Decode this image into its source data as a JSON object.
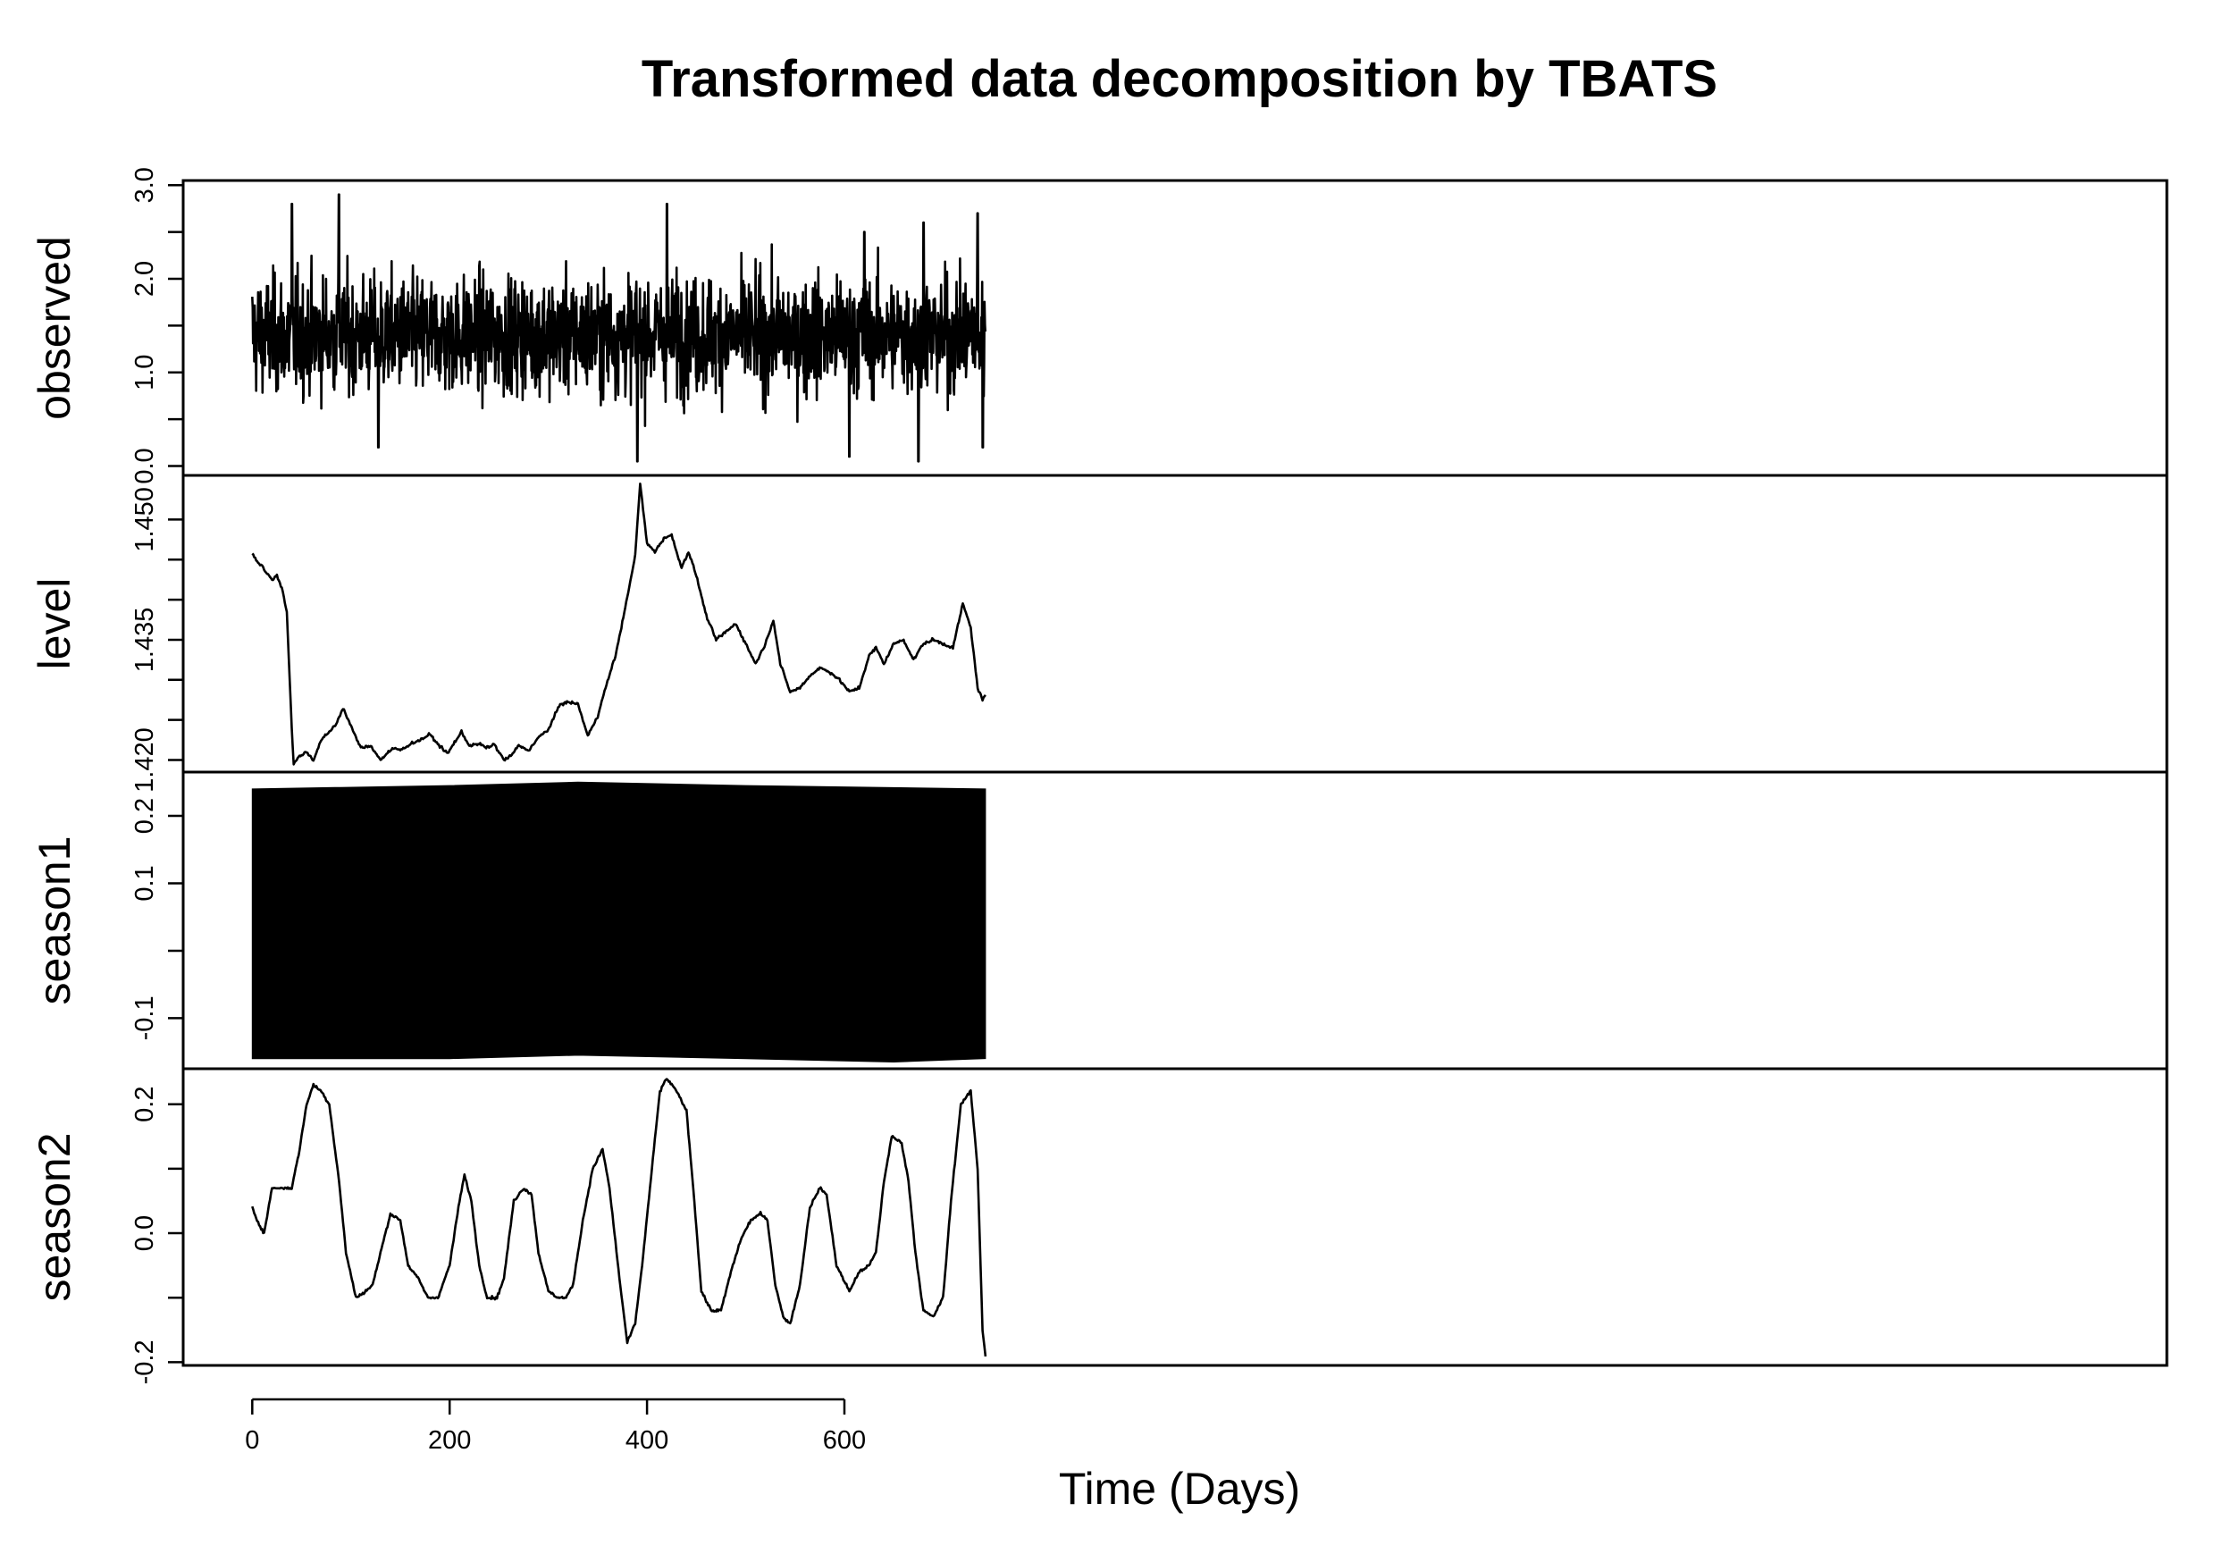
{
  "chart_data": {
    "type": "line",
    "title": "Transformed data decomposition by TBATS",
    "xlabel": "Time (Days)",
    "xlim": [
      -70,
      1940
    ],
    "xticks": [
      0,
      200,
      400,
      600
    ],
    "x_range": [
      0,
      743
    ],
    "series_color": "#000000",
    "panels": [
      {
        "name": "observed",
        "ylabel": "observed",
        "ylim": [
          -0.1,
          3.05
        ],
        "yticks": [
          0.0,
          0.5,
          1.0,
          1.5,
          2.0,
          2.5,
          3.0
        ],
        "ytick_labels": [
          "0.0",
          "",
          "1.0",
          "",
          "2.0",
          "",
          "3.0"
        ],
        "kind": "noise",
        "summary": {
          "mean": 1.4,
          "min": 0.0,
          "max": 2.9,
          "typical_low": 0.4,
          "typical_high": 2.3
        },
        "peaks": [
          [
            40,
            2.8
          ],
          [
            88,
            2.9
          ],
          [
            420,
            2.8
          ],
          [
            620,
            2.5
          ],
          [
            680,
            2.6
          ],
          [
            735,
            2.7
          ]
        ],
        "troughs": [
          [
            128,
            0.2
          ],
          [
            390,
            0.05
          ],
          [
            605,
            0.1
          ],
          [
            675,
            0.05
          ],
          [
            740,
            0.2
          ]
        ]
      },
      {
        "name": "level",
        "ylabel": "level",
        "ylim": [
          1.4185,
          1.4555
        ],
        "yticks": [
          1.42,
          1.425,
          1.43,
          1.435,
          1.44,
          1.445,
          1.45
        ],
        "ytick_labels": [
          "1.420",
          "",
          "",
          "1.435",
          "",
          "",
          "1.450"
        ],
        "kind": "line",
        "points": [
          [
            0,
            1.4458
          ],
          [
            5,
            1.4448
          ],
          [
            10,
            1.4442
          ],
          [
            15,
            1.4432
          ],
          [
            20,
            1.4425
          ],
          [
            25,
            1.443
          ],
          [
            30,
            1.4415
          ],
          [
            35,
            1.4385
          ],
          [
            40,
            1.424
          ],
          [
            42,
            1.4195
          ],
          [
            48,
            1.4205
          ],
          [
            55,
            1.421
          ],
          [
            62,
            1.42
          ],
          [
            70,
            1.4225
          ],
          [
            78,
            1.4235
          ],
          [
            85,
            1.4245
          ],
          [
            92,
            1.4265
          ],
          [
            100,
            1.4242
          ],
          [
            110,
            1.4215
          ],
          [
            120,
            1.4218
          ],
          [
            130,
            1.42
          ],
          [
            138,
            1.421
          ],
          [
            145,
            1.4215
          ],
          [
            150,
            1.4212
          ],
          [
            160,
            1.422
          ],
          [
            170,
            1.4225
          ],
          [
            180,
            1.4232
          ],
          [
            188,
            1.422
          ],
          [
            198,
            1.4208
          ],
          [
            205,
            1.4222
          ],
          [
            212,
            1.4235
          ],
          [
            220,
            1.4218
          ],
          [
            230,
            1.422
          ],
          [
            238,
            1.4215
          ],
          [
            245,
            1.422
          ],
          [
            255,
            1.42
          ],
          [
            262,
            1.4205
          ],
          [
            270,
            1.4218
          ],
          [
            280,
            1.4212
          ],
          [
            290,
            1.4228
          ],
          [
            300,
            1.4238
          ],
          [
            312,
            1.427
          ],
          [
            320,
            1.4272
          ],
          [
            330,
            1.427
          ],
          [
            340,
            1.423
          ],
          [
            350,
            1.4255
          ],
          [
            358,
            1.429
          ],
          [
            368,
            1.433
          ],
          [
            378,
            1.439
          ],
          [
            388,
            1.4455
          ],
          [
            393,
            1.4545
          ],
          [
            400,
            1.447
          ],
          [
            408,
            1.446
          ],
          [
            418,
            1.4478
          ],
          [
            425,
            1.448
          ],
          [
            435,
            1.444
          ],
          [
            442,
            1.446
          ],
          [
            450,
            1.443
          ],
          [
            460,
            1.438
          ],
          [
            470,
            1.435
          ],
          [
            480,
            1.436
          ],
          [
            490,
            1.437
          ],
          [
            500,
            1.4345
          ],
          [
            510,
            1.432
          ],
          [
            520,
            1.4345
          ],
          [
            528,
            1.4375
          ],
          [
            535,
            1.432
          ],
          [
            545,
            1.4285
          ],
          [
            555,
            1.429
          ],
          [
            565,
            1.4305
          ],
          [
            575,
            1.4315
          ],
          [
            585,
            1.431
          ],
          [
            595,
            1.43
          ],
          [
            605,
            1.4285
          ],
          [
            615,
            1.429
          ],
          [
            625,
            1.433
          ],
          [
            632,
            1.434
          ],
          [
            640,
            1.432
          ],
          [
            650,
            1.4345
          ],
          [
            660,
            1.435
          ],
          [
            670,
            1.4325
          ],
          [
            680,
            1.4345
          ],
          [
            690,
            1.435
          ],
          [
            700,
            1.4345
          ],
          [
            710,
            1.434
          ],
          [
            720,
            1.4395
          ],
          [
            728,
            1.4365
          ],
          [
            735,
            1.429
          ],
          [
            740,
            1.4275
          ],
          [
            743,
            1.428
          ]
        ]
      },
      {
        "name": "season1",
        "ylabel": "season1",
        "ylim": [
          -0.175,
          0.265
        ],
        "yticks": [
          -0.1,
          0.0,
          0.1,
          0.2
        ],
        "ytick_labels": [
          "-0.1",
          "",
          "0.1",
          "0.2"
        ],
        "kind": "band",
        "upper_points": [
          [
            0,
            0.24
          ],
          [
            200,
            0.245
          ],
          [
            330,
            0.25
          ],
          [
            500,
            0.245
          ],
          [
            743,
            0.24
          ]
        ],
        "lower_points": [
          [
            0,
            -0.16
          ],
          [
            200,
            -0.16
          ],
          [
            330,
            -0.155
          ],
          [
            500,
            -0.16
          ],
          [
            650,
            -0.165
          ],
          [
            743,
            -0.16
          ]
        ]
      },
      {
        "name": "season2",
        "ylabel": "season2",
        "ylim": [
          -0.205,
          0.255
        ],
        "yticks": [
          -0.2,
          -0.1,
          0.0,
          0.1,
          0.2
        ],
        "ytick_labels": [
          "-0.2",
          "",
          "0.0",
          "",
          "0.2"
        ],
        "kind": "line",
        "points": [
          [
            0,
            0.04
          ],
          [
            5,
            0.02
          ],
          [
            12,
            0.0
          ],
          [
            20,
            0.07
          ],
          [
            30,
            0.07
          ],
          [
            40,
            0.07
          ],
          [
            48,
            0.13
          ],
          [
            55,
            0.2
          ],
          [
            62,
            0.23
          ],
          [
            70,
            0.22
          ],
          [
            78,
            0.2
          ],
          [
            88,
            0.08
          ],
          [
            95,
            -0.03
          ],
          [
            105,
            -0.1
          ],
          [
            115,
            -0.09
          ],
          [
            122,
            -0.08
          ],
          [
            130,
            -0.03
          ],
          [
            140,
            0.03
          ],
          [
            150,
            0.02
          ],
          [
            158,
            -0.05
          ],
          [
            168,
            -0.07
          ],
          [
            178,
            -0.1
          ],
          [
            188,
            -0.1
          ],
          [
            200,
            -0.05
          ],
          [
            210,
            0.05
          ],
          [
            215,
            0.09
          ],
          [
            222,
            0.05
          ],
          [
            230,
            -0.05
          ],
          [
            238,
            -0.1
          ],
          [
            248,
            -0.1
          ],
          [
            255,
            -0.07
          ],
          [
            265,
            0.05
          ],
          [
            275,
            0.07
          ],
          [
            283,
            0.06
          ],
          [
            290,
            -0.03
          ],
          [
            300,
            -0.09
          ],
          [
            310,
            -0.1
          ],
          [
            318,
            -0.1
          ],
          [
            325,
            -0.08
          ],
          [
            335,
            0.02
          ],
          [
            345,
            0.1
          ],
          [
            355,
            0.13
          ],
          [
            362,
            0.07
          ],
          [
            372,
            -0.07
          ],
          [
            380,
            -0.17
          ],
          [
            388,
            -0.14
          ],
          [
            395,
            -0.05
          ],
          [
            405,
            0.1
          ],
          [
            413,
            0.22
          ],
          [
            420,
            0.24
          ],
          [
            430,
            0.22
          ],
          [
            440,
            0.19
          ],
          [
            448,
            0.05
          ],
          [
            455,
            -0.09
          ],
          [
            465,
            -0.12
          ],
          [
            475,
            -0.12
          ],
          [
            485,
            -0.06
          ],
          [
            495,
            -0.01
          ],
          [
            505,
            0.02
          ],
          [
            515,
            0.03
          ],
          [
            522,
            0.02
          ],
          [
            530,
            -0.08
          ],
          [
            538,
            -0.13
          ],
          [
            545,
            -0.14
          ],
          [
            555,
            -0.08
          ],
          [
            565,
            0.04
          ],
          [
            575,
            0.07
          ],
          [
            582,
            0.06
          ],
          [
            592,
            -0.05
          ],
          [
            605,
            -0.09
          ],
          [
            615,
            -0.06
          ],
          [
            625,
            -0.05
          ],
          [
            632,
            -0.03
          ],
          [
            640,
            0.08
          ],
          [
            648,
            0.15
          ],
          [
            658,
            0.14
          ],
          [
            665,
            0.08
          ],
          [
            672,
            -0.03
          ],
          [
            680,
            -0.12
          ],
          [
            690,
            -0.13
          ],
          [
            700,
            -0.1
          ],
          [
            708,
            0.05
          ],
          [
            718,
            0.2
          ],
          [
            728,
            0.22
          ],
          [
            735,
            0.1
          ],
          [
            740,
            -0.15
          ],
          [
            743,
            -0.19
          ]
        ]
      }
    ]
  }
}
